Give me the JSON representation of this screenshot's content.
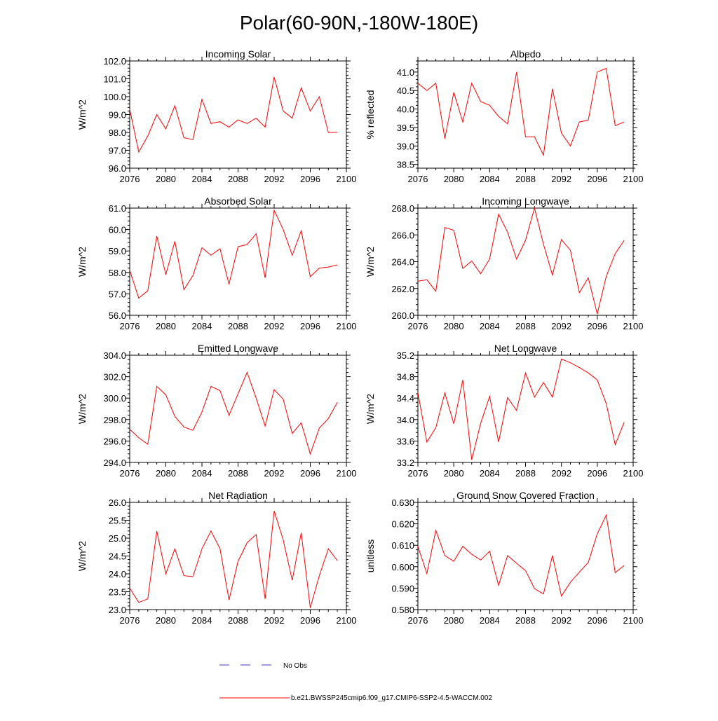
{
  "page_title": "Polar(60-90N,-180W-180E)",
  "legend": {
    "no_obs_label": "No Obs",
    "no_obs_color": "#3b3bd6",
    "model_label": "b.e21.BWSSP245cmip6.f09_g17.CMIP6-SSP2-4.5-WACCM.002",
    "model_color": "#ff0000"
  },
  "chart_data": [
    {
      "type": "line",
      "title": "Incoming Solar",
      "xlabel": "",
      "ylabel": "W/m^2",
      "xlim": [
        2076,
        2100
      ],
      "ylim": [
        96.0,
        102.0
      ],
      "xticks": [
        2076,
        2080,
        2084,
        2088,
        2092,
        2096,
        2100
      ],
      "yticks": [
        "96.0",
        "97.0",
        "98.0",
        "99.0",
        "100.0",
        "101.0",
        "102.0"
      ],
      "x": [
        2076,
        2077,
        2078,
        2079,
        2080,
        2081,
        2082,
        2083,
        2084,
        2085,
        2086,
        2087,
        2088,
        2089,
        2090,
        2091,
        2092,
        2093,
        2094,
        2095,
        2096,
        2097,
        2098,
        2099
      ],
      "series": [
        {
          "name": "b.e21.BWSSP245cmip6.f09_g17.CMIP6-SSP2-4.5-WACCM.002",
          "color": "#ff0000",
          "values": [
            99.3,
            96.9,
            97.8,
            99.0,
            98.2,
            99.5,
            97.7,
            97.6,
            99.85,
            98.5,
            98.6,
            98.3,
            98.7,
            98.5,
            98.8,
            98.3,
            101.1,
            99.2,
            98.8,
            100.5,
            99.2,
            100.0,
            98.0,
            98.0
          ]
        }
      ]
    },
    {
      "type": "line",
      "title": "Albedo",
      "xlabel": "",
      "ylabel": "% reflected",
      "xlim": [
        2076,
        2100
      ],
      "ylim": [
        38.4,
        41.3
      ],
      "xticks": [
        2076,
        2080,
        2084,
        2088,
        2092,
        2096,
        2100
      ],
      "yticks": [
        "38.5",
        "39.0",
        "39.5",
        "40.0",
        "40.5",
        "41.0"
      ],
      "x": [
        2076,
        2077,
        2078,
        2079,
        2080,
        2081,
        2082,
        2083,
        2084,
        2085,
        2086,
        2087,
        2088,
        2089,
        2090,
        2091,
        2092,
        2093,
        2094,
        2095,
        2096,
        2097,
        2098,
        2099
      ],
      "series": [
        {
          "name": "b.e21.BWSSP245cmip6.f09_g17.CMIP6-SSP2-4.5-WACCM.002",
          "color": "#ff0000",
          "values": [
            40.7,
            40.5,
            40.7,
            39.2,
            40.45,
            39.65,
            40.7,
            40.2,
            40.1,
            39.8,
            39.6,
            41.0,
            39.25,
            39.25,
            38.75,
            40.55,
            39.35,
            39.0,
            39.65,
            39.7,
            41.0,
            41.1,
            39.55,
            39.65
          ]
        }
      ]
    },
    {
      "type": "line",
      "title": "Absorbed Solar",
      "xlabel": "",
      "ylabel": "W/m^2",
      "xlim": [
        2076,
        2100
      ],
      "ylim": [
        56.0,
        61.0
      ],
      "xticks": [
        2076,
        2080,
        2084,
        2088,
        2092,
        2096,
        2100
      ],
      "yticks": [
        "56.0",
        "57.0",
        "58.0",
        "59.0",
        "60.0",
        "61.0"
      ],
      "x": [
        2076,
        2077,
        2078,
        2079,
        2080,
        2081,
        2082,
        2083,
        2084,
        2085,
        2086,
        2087,
        2088,
        2089,
        2090,
        2091,
        2092,
        2093,
        2094,
        2095,
        2096,
        2097,
        2098,
        2099
      ],
      "series": [
        {
          "name": "b.e21.BWSSP245cmip6.f09_g17.CMIP6-SSP2-4.5-WACCM.002",
          "color": "#ff0000",
          "values": [
            58.1,
            56.8,
            57.15,
            59.7,
            57.9,
            59.45,
            57.2,
            57.85,
            59.15,
            58.8,
            59.1,
            57.45,
            59.2,
            59.3,
            59.8,
            57.75,
            60.9,
            60.0,
            58.8,
            59.95,
            57.8,
            58.2,
            58.25,
            58.35
          ]
        }
      ]
    },
    {
      "type": "line",
      "title": "Incoming Longwave",
      "xlabel": "",
      "ylabel": "W/m^2",
      "xlim": [
        2076,
        2100
      ],
      "ylim": [
        260.0,
        268.0
      ],
      "xticks": [
        2076,
        2080,
        2084,
        2088,
        2092,
        2096,
        2100
      ],
      "yticks": [
        "260.0",
        "262.0",
        "264.0",
        "266.0",
        "268.0"
      ],
      "x": [
        2076,
        2077,
        2078,
        2079,
        2080,
        2081,
        2082,
        2083,
        2084,
        2085,
        2086,
        2087,
        2088,
        2089,
        2090,
        2091,
        2092,
        2093,
        2094,
        2095,
        2096,
        2097,
        2098,
        2099
      ],
      "series": [
        {
          "name": "b.e21.BWSSP245cmip6.f09_g17.CMIP6-SSP2-4.5-WACCM.002",
          "color": "#ff0000",
          "values": [
            262.55,
            262.65,
            261.8,
            266.55,
            266.35,
            263.5,
            264.05,
            263.1,
            264.2,
            267.55,
            266.2,
            264.2,
            265.6,
            268.0,
            265.3,
            263.0,
            265.65,
            264.85,
            261.7,
            262.8,
            260.1,
            262.9,
            264.6,
            265.6
          ]
        }
      ]
    },
    {
      "type": "line",
      "title": "Emitted Longwave",
      "xlabel": "",
      "ylabel": "W/m^2",
      "xlim": [
        2076,
        2100
      ],
      "ylim": [
        294.0,
        304.0
      ],
      "xticks": [
        2076,
        2080,
        2084,
        2088,
        2092,
        2096,
        2100
      ],
      "yticks": [
        "294.0",
        "296.0",
        "298.0",
        "300.0",
        "302.0",
        "304.0"
      ],
      "x": [
        2076,
        2077,
        2078,
        2079,
        2080,
        2081,
        2082,
        2083,
        2084,
        2085,
        2086,
        2087,
        2088,
        2089,
        2090,
        2091,
        2092,
        2093,
        2094,
        2095,
        2096,
        2097,
        2098,
        2099
      ],
      "series": [
        {
          "name": "b.e21.BWSSP245cmip6.f09_g17.CMIP6-SSP2-4.5-WACCM.002",
          "color": "#ff0000",
          "values": [
            297.1,
            296.3,
            295.7,
            301.1,
            300.3,
            298.3,
            297.3,
            297.0,
            298.7,
            301.1,
            300.7,
            298.4,
            300.4,
            302.4,
            300.0,
            297.4,
            300.8,
            299.9,
            296.7,
            297.7,
            294.8,
            297.2,
            298.1,
            299.6
          ]
        }
      ]
    },
    {
      "type": "line",
      "title": "Net Longwave",
      "xlabel": "",
      "ylabel": "W/m^2",
      "xlim": [
        2076,
        2100
      ],
      "ylim": [
        33.2,
        35.2
      ],
      "xticks": [
        2076,
        2080,
        2084,
        2088,
        2092,
        2096,
        2100
      ],
      "yticks": [
        "33.2",
        "33.6",
        "34.0",
        "34.4",
        "34.8",
        "35.2"
      ],
      "x": [
        2076,
        2077,
        2078,
        2079,
        2080,
        2081,
        2082,
        2083,
        2084,
        2085,
        2086,
        2087,
        2088,
        2089,
        2090,
        2091,
        2092,
        2093,
        2094,
        2095,
        2096,
        2097,
        2098,
        2099
      ],
      "series": [
        {
          "name": "b.e21.BWSSP245cmip6.f09_g17.CMIP6-SSP2-4.5-WACCM.002",
          "color": "#ff0000",
          "values": [
            34.5,
            33.58,
            33.85,
            34.5,
            33.92,
            34.74,
            33.25,
            33.93,
            34.43,
            33.58,
            34.41,
            34.17,
            34.87,
            34.42,
            34.69,
            34.42,
            35.13,
            35.06,
            34.97,
            34.87,
            34.74,
            34.3,
            33.53,
            33.95
          ]
        }
      ]
    },
    {
      "type": "line",
      "title": "Net Radiation",
      "xlabel": "",
      "ylabel": "W/m^2",
      "xlim": [
        2076,
        2100
      ],
      "ylim": [
        23.0,
        26.0
      ],
      "xticks": [
        2076,
        2080,
        2084,
        2088,
        2092,
        2096,
        2100
      ],
      "yticks": [
        "23.0",
        "23.5",
        "24.0",
        "24.5",
        "25.0",
        "25.5",
        "26.0"
      ],
      "x": [
        2076,
        2077,
        2078,
        2079,
        2080,
        2081,
        2082,
        2083,
        2084,
        2085,
        2086,
        2087,
        2088,
        2089,
        2090,
        2091,
        2092,
        2093,
        2094,
        2095,
        2096,
        2097,
        2098,
        2099
      ],
      "series": [
        {
          "name": "b.e21.BWSSP245cmip6.f09_g17.CMIP6-SSP2-4.5-WACCM.002",
          "color": "#ff0000",
          "values": [
            23.6,
            23.2,
            23.3,
            25.2,
            24.0,
            24.7,
            23.95,
            23.92,
            24.7,
            25.2,
            24.7,
            23.27,
            24.35,
            24.87,
            25.1,
            23.3,
            25.76,
            24.95,
            23.82,
            25.15,
            23.05,
            23.95,
            24.7,
            24.37
          ]
        }
      ]
    },
    {
      "type": "line",
      "title": "Ground Snow Covered Fraction",
      "xlabel": "",
      "ylabel": "unitless",
      "xlim": [
        2076,
        2100
      ],
      "ylim": [
        0.58,
        0.63
      ],
      "xticks": [
        2076,
        2080,
        2084,
        2088,
        2092,
        2096,
        2100
      ],
      "yticks": [
        "0.580",
        "0.590",
        "0.600",
        "0.610",
        "0.620",
        "0.630"
      ],
      "x": [
        2076,
        2077,
        2078,
        2079,
        2080,
        2081,
        2082,
        2083,
        2084,
        2085,
        2086,
        2087,
        2088,
        2089,
        2090,
        2091,
        2092,
        2093,
        2094,
        2095,
        2096,
        2097,
        2098,
        2099
      ],
      "series": [
        {
          "name": "b.e21.BWSSP245cmip6.f09_g17.CMIP6-SSP2-4.5-WACCM.002",
          "color": "#ff0000",
          "values": [
            0.6095,
            0.5968,
            0.617,
            0.6052,
            0.6025,
            0.6095,
            0.6058,
            0.6031,
            0.6072,
            0.5913,
            0.6052,
            0.6016,
            0.5982,
            0.5898,
            0.5873,
            0.6052,
            0.5863,
            0.5927,
            0.5975,
            0.602,
            0.6153,
            0.6241,
            0.5972,
            0.6006
          ]
        }
      ]
    }
  ]
}
